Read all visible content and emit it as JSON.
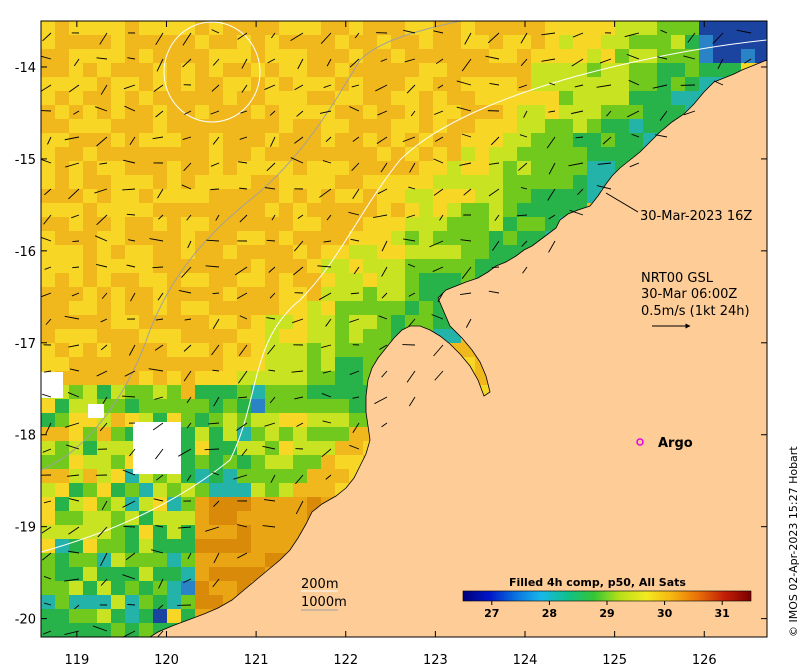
{
  "map": {
    "x_ticks": [
      "119",
      "120",
      "121",
      "122",
      "123",
      "124",
      "125",
      "126"
    ],
    "y_ticks": [
      "-14",
      "-15",
      "-16",
      "-17",
      "-18",
      "-19",
      "-20"
    ],
    "x_range": [
      118.6,
      126.7
    ],
    "y_range": [
      -20.2,
      -13.5
    ],
    "ocean_palette": [
      "#d88a08",
      "#e9a514",
      "#f0b81c",
      "#f7d626",
      "#c7e322",
      "#71c91d",
      "#27b24a",
      "#23b3a8",
      "#2a82c7",
      "#1b43a0"
    ],
    "land_color": "#fdcc97",
    "coast_color": "#000000",
    "contour_colors": [
      "#ffffff",
      "#a0a0a0"
    ]
  },
  "annotations": {
    "pass_time": "30-Mar-2023 16Z",
    "current_title": "NRT00 GSL",
    "current_time": "30-Mar 06:00Z",
    "current_scale": "0.5m/s (1kt 24h)",
    "depth_200": "200m",
    "depth_1000": "1000m",
    "argo_label": "Argo",
    "argo_color": "#e600e6"
  },
  "colorbar": {
    "title": "Filled 4h comp, p50, All Sats",
    "ticks": [
      "27",
      "28",
      "29",
      "30",
      "31"
    ],
    "range": [
      26.5,
      31.5
    ],
    "stops": [
      "#00007a",
      "#0016c8",
      "#0a72e0",
      "#18b8e8",
      "#10c08a",
      "#34c636",
      "#b8e018",
      "#f2ea20",
      "#f6b410",
      "#e86e08",
      "#c21e06",
      "#7a0000"
    ]
  },
  "credit": "© IMOS 02-Apr-2023 15:27 Hobart"
}
